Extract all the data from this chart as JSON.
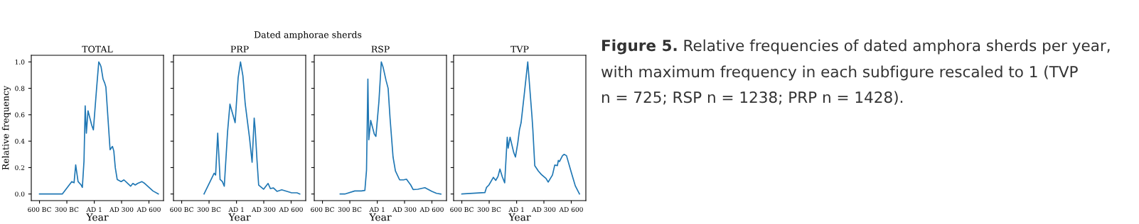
{
  "chart_data": [
    {
      "type": "other",
      "title": "Dated amphorae sherds"
    },
    {
      "type": "line",
      "title": "TOTAL",
      "xlabel": "Year",
      "ylabel": "Relative frequency",
      "color": "#1f77b4",
      "x": [
        -600,
        -350,
        -246,
        -221,
        -203,
        -177,
        -143,
        -130,
        -112,
        -99,
        -86,
        -68,
        -27,
        -9,
        25,
        50,
        66,
        76,
        97,
        115,
        128,
        174,
        200,
        215,
        231,
        252,
        295,
        326,
        399,
        424,
        450,
        476,
        522,
        554,
        644,
        703
      ],
      "values": [
        0,
        0,
        0.094,
        0.085,
        0.22,
        0.094,
        0.068,
        0.05,
        0.25,
        0.667,
        0.46,
        0.63,
        0.52,
        0.486,
        0.79,
        1.0,
        0.98,
        0.96,
        0.87,
        0.84,
        0.81,
        0.335,
        0.36,
        0.325,
        0.2,
        0.11,
        0.094,
        0.107,
        0.059,
        0.08,
        0.068,
        0.08,
        0.094,
        0.08,
        0.023,
        0
      ],
      "xlim": [
        -690,
        760
      ],
      "ylim": [
        -0.05,
        1.05
      ],
      "xticks": [
        {
          "value": -600,
          "label": "600 BC"
        },
        {
          "value": -300,
          "label": "300 BC"
        },
        {
          "value": 1,
          "label": "AD 1"
        },
        {
          "value": 300,
          "label": "AD 300"
        },
        {
          "value": 600,
          "label": "AD 600"
        }
      ],
      "yticks": [
        {
          "value": 0,
          "label": "0.0"
        },
        {
          "value": 0.2,
          "label": "0.2"
        },
        {
          "value": 0.4,
          "label": "0.4"
        },
        {
          "value": 0.6,
          "label": "0.6"
        },
        {
          "value": 0.8,
          "label": "0.8"
        },
        {
          "value": 1,
          "label": "1.0"
        }
      ]
    },
    {
      "type": "line",
      "title": "PRP",
      "xlabel": "Year",
      "color": "#1f77b4",
      "tick_labels": "x",
      "x": [
        -355,
        -244,
        -228,
        -205,
        -179,
        -154,
        -133,
        -97,
        -71,
        -14,
        19,
        45,
        71,
        97,
        143,
        172,
        195,
        205,
        226,
        244,
        298,
        347,
        373,
        406,
        445,
        497,
        600,
        664,
        695
      ],
      "values": [
        0,
        0.157,
        0.144,
        0.46,
        0.11,
        0.094,
        0.059,
        0.47,
        0.68,
        0.54,
        0.88,
        1.0,
        0.895,
        0.68,
        0.43,
        0.24,
        0.575,
        0.5,
        0.254,
        0.068,
        0.036,
        0.08,
        0.041,
        0.046,
        0.02,
        0.032,
        0.01,
        0.009,
        0
      ],
      "xlim": [
        -690,
        760
      ],
      "ylim": [
        -0.05,
        1.05
      ],
      "xticks": [
        {
          "value": -600,
          "label": "600 BC"
        },
        {
          "value": -300,
          "label": "300 BC"
        },
        {
          "value": 1,
          "label": "AD 1"
        },
        {
          "value": 300,
          "label": "AD 300"
        },
        {
          "value": 600,
          "label": "AD 600"
        }
      ],
      "yticks": [
        {
          "value": 0,
          "label": null
        },
        {
          "value": 0.2,
          "label": null
        },
        {
          "value": 0.4,
          "label": null
        },
        {
          "value": 0.6,
          "label": null
        },
        {
          "value": 0.8,
          "label": null
        },
        {
          "value": 1,
          "label": null
        }
      ]
    },
    {
      "type": "line",
      "title": "RSP",
      "xlabel": "Year",
      "color": "#1f77b4",
      "tick_labels": "x",
      "x": [
        -406,
        -355,
        -246,
        -174,
        -135,
        -117,
        -102,
        -92,
        -71,
        -32,
        -14,
        19,
        45,
        66,
        97,
        120,
        141,
        174,
        200,
        246,
        290,
        321,
        368,
        394,
        445,
        523,
        600,
        651,
        698
      ],
      "values": [
        0,
        0,
        0.023,
        0.023,
        0.027,
        0.18,
        0.87,
        0.41,
        0.557,
        0.454,
        0.436,
        0.7,
        1.0,
        0.957,
        0.86,
        0.8,
        0.575,
        0.28,
        0.175,
        0.107,
        0.107,
        0.112,
        0.068,
        0.034,
        0.036,
        0.048,
        0.02,
        0.005,
        0
      ],
      "xlim": [
        -690,
        760
      ],
      "ylim": [
        -0.05,
        1.05
      ],
      "xticks": [
        {
          "value": -600,
          "label": "600 BC"
        },
        {
          "value": -300,
          "label": "300 BC"
        },
        {
          "value": 1,
          "label": "AD 1"
        },
        {
          "value": 300,
          "label": "AD 300"
        },
        {
          "value": 600,
          "label": "AD 600"
        }
      ],
      "yticks": [
        {
          "value": 0,
          "label": null
        },
        {
          "value": 0.2,
          "label": null
        },
        {
          "value": 0.4,
          "label": null
        },
        {
          "value": 0.6,
          "label": null
        },
        {
          "value": 0.8,
          "label": null
        },
        {
          "value": 1,
          "label": null
        }
      ]
    },
    {
      "type": "line",
      "title": "TVP",
      "xlabel": "Year",
      "color": "#1f77b4",
      "tick_labels": "x",
      "x": [
        -600,
        -347,
        -329,
        -303,
        -254,
        -228,
        -203,
        -182,
        -156,
        -130,
        -102,
        -92,
        -71,
        -32,
        -12,
        14,
        32,
        50,
        84,
        123,
        169,
        179,
        200,
        239,
        272,
        324,
        347,
        394,
        419,
        448,
        458,
        471,
        504,
        522,
        548,
        600,
        644,
        690
      ],
      "values": [
        0,
        0.011,
        0.05,
        0.068,
        0.126,
        0.103,
        0.133,
        0.189,
        0.13,
        0.085,
        0.43,
        0.347,
        0.43,
        0.317,
        0.28,
        0.388,
        0.486,
        0.54,
        0.75,
        1.0,
        0.59,
        0.486,
        0.214,
        0.174,
        0.148,
        0.117,
        0.09,
        0.144,
        0.219,
        0.215,
        0.254,
        0.246,
        0.29,
        0.3,
        0.29,
        0.165,
        0.062,
        0
      ],
      "xlim": [
        -690,
        760
      ],
      "ylim": [
        -0.05,
        1.05
      ],
      "xticks": [
        {
          "value": -600,
          "label": "600 BC"
        },
        {
          "value": -300,
          "label": "300 BC"
        },
        {
          "value": 1,
          "label": "AD 1"
        },
        {
          "value": 300,
          "label": "AD 300"
        },
        {
          "value": 600,
          "label": "AD 600"
        }
      ],
      "yticks": [
        {
          "value": 0,
          "label": null
        },
        {
          "value": 0.2,
          "label": null
        },
        {
          "value": 0.4,
          "label": null
        },
        {
          "value": 0.6,
          "label": null
        },
        {
          "value": 0.8,
          "label": null
        },
        {
          "value": 1,
          "label": null
        }
      ]
    },
    {
      "type": "other",
      "annotations": [
        "Figure 5.",
        "Relative frequencies of dated amphora sherds per year,",
        "with maximum frequency in each subfigure rescaled to 1 (TVP",
        "n = 725; RSP n = 1238; PRP n = 1428)."
      ]
    }
  ]
}
